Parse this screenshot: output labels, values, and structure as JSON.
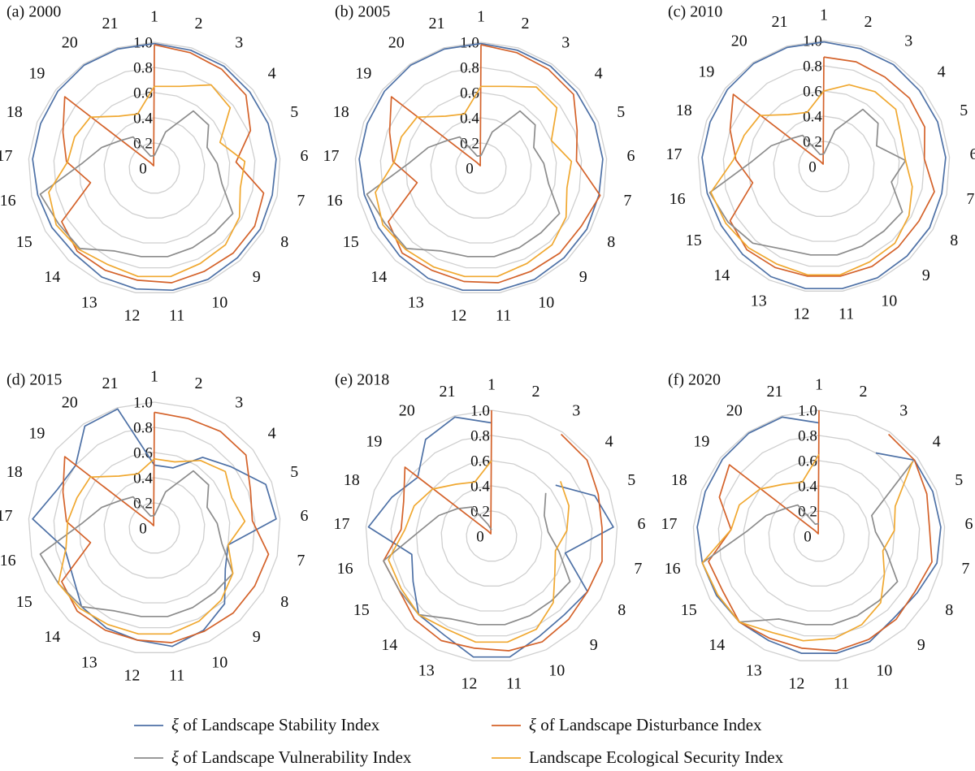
{
  "colors": {
    "stability": "#4e71a6",
    "disturbance": "#d4622a",
    "vulnerability": "#8c8c8c",
    "security": "#f0a830",
    "grid": "#cfcfcf"
  },
  "legend": [
    {
      "key": "stability",
      "prefix": "ξ",
      "text": " of Landscape Stability Index"
    },
    {
      "key": "disturbance",
      "prefix": "ξ",
      "text": " of Landscape Disturbance Index"
    },
    {
      "key": "vulnerability",
      "prefix": "ξ",
      "text": " of Landscape Vulnerability Index"
    },
    {
      "key": "security",
      "prefix": "",
      "text": "Landscape Ecological Security Index"
    }
  ],
  "chart_data": [
    {
      "type": "radar",
      "title": "(a) 2000",
      "categories": [
        "1",
        "2",
        "3",
        "4",
        "5",
        "6",
        "7",
        "8",
        "9",
        "10",
        "11",
        "12",
        "13",
        "14",
        "15",
        "16",
        "17",
        "18",
        "19",
        "20",
        "21"
      ],
      "ticks": [
        "0",
        "0.2",
        "0.4",
        "0.6",
        "0.8",
        "1.0"
      ],
      "ylim": [
        0,
        1
      ],
      "series": [
        {
          "key": "stability",
          "name": "ξ of Landscape Stability Index",
          "values": [
            0.99,
            0.98,
            0.98,
            0.97,
            0.97,
            0.97,
            0.96,
            0.97,
            0.97,
            0.98,
            0.98,
            0.97,
            0.96,
            0.93,
            0.94,
            0.95,
            0.97,
            0.97,
            0.98,
            0.99,
            0.99
          ]
        },
        {
          "key": "disturbance",
          "name": "ξ of Landscape Disturbance Index",
          "values": [
            0.98,
            0.96,
            0.95,
            0.93,
            0.82,
            0.65,
            0.89,
            0.92,
            0.92,
            0.91,
            0.92,
            0.9,
            0.9,
            0.9,
            0.85,
            0.52,
            0.7,
            0.78,
            0.91,
            0.05,
            0.02
          ]
        },
        {
          "key": "vulnerability",
          "name": "ξ of Landscape Vulnerability Index",
          "values": [
            0.1,
            0.3,
            0.55,
            0.55,
            0.45,
            0.5,
            0.55,
            0.72,
            0.7,
            0.7,
            0.71,
            0.71,
            0.73,
            0.87,
            0.88,
            0.93,
            0.57,
            0.45,
            0.35,
            0.3,
            0.1
          ]
        },
        {
          "key": "security",
          "name": "Landscape Ecological Security Index",
          "values": [
            0.65,
            0.68,
            0.8,
            0.77,
            0.56,
            0.72,
            0.7,
            0.78,
            0.83,
            0.84,
            0.87,
            0.87,
            0.85,
            0.88,
            0.9,
            0.86,
            0.69,
            0.68,
            0.65,
            0.5,
            0.45
          ]
        }
      ]
    },
    {
      "type": "radar",
      "title": "(b) 2005",
      "categories": [
        "1",
        "2",
        "3",
        "4",
        "5",
        "6",
        "7",
        "8",
        "9",
        "10",
        "11",
        "12",
        "13",
        "14",
        "15",
        "16",
        "17",
        "18",
        "19",
        "20",
        "21"
      ],
      "ticks": [
        "0",
        "0.2",
        "0.4",
        "0.6",
        "0.8",
        "1.0"
      ],
      "ylim": [
        0,
        1
      ],
      "series": [
        {
          "key": "stability",
          "name": "ξ of Landscape Stability Index",
          "values": [
            0.99,
            0.98,
            0.98,
            0.97,
            0.97,
            0.97,
            0.96,
            0.97,
            0.97,
            0.98,
            0.98,
            0.98,
            0.97,
            0.95,
            0.94,
            0.95,
            0.97,
            0.97,
            0.98,
            0.99,
            0.99
          ]
        },
        {
          "key": "disturbance",
          "name": "ξ of Landscape Disturbance Index",
          "values": [
            0.98,
            0.96,
            0.95,
            0.94,
            0.82,
            0.76,
            0.97,
            0.92,
            0.92,
            0.91,
            0.92,
            0.91,
            0.9,
            0.92,
            0.85,
            0.52,
            0.7,
            0.78,
            0.91,
            0.05,
            0.02
          ]
        },
        {
          "key": "vulnerability",
          "name": "ξ of Landscape Vulnerability Index",
          "values": [
            0.1,
            0.3,
            0.55,
            0.55,
            0.45,
            0.5,
            0.55,
            0.72,
            0.7,
            0.7,
            0.71,
            0.71,
            0.73,
            0.87,
            0.88,
            0.93,
            0.57,
            0.45,
            0.35,
            0.3,
            0.1
          ]
        },
        {
          "key": "security",
          "name": "Landscape Ecological Security Index",
          "values": [
            0.65,
            0.68,
            0.78,
            0.77,
            0.6,
            0.72,
            0.7,
            0.78,
            0.83,
            0.84,
            0.87,
            0.87,
            0.87,
            0.88,
            0.9,
            0.86,
            0.69,
            0.68,
            0.65,
            0.5,
            0.45
          ]
        }
      ]
    },
    {
      "type": "radar",
      "title": "(c) 2010",
      "categories": [
        "1",
        "2",
        "3",
        "4",
        "5",
        "6",
        "7",
        "8",
        "9",
        "10",
        "11",
        "12",
        "13",
        "14",
        "15",
        "16",
        "17",
        "18",
        "19",
        "20",
        "21"
      ],
      "ticks": [
        "0",
        "0.2",
        "0.4",
        "0.6",
        "0.8",
        "1.0"
      ],
      "ylim": [
        0,
        1
      ],
      "series": [
        {
          "key": "stability",
          "name": "ξ of Landscape Stability Index",
          "values": [
            0.99,
            0.98,
            0.98,
            0.97,
            0.97,
            0.97,
            0.96,
            0.97,
            0.97,
            0.98,
            0.98,
            0.98,
            0.97,
            0.95,
            0.94,
            0.95,
            0.97,
            0.97,
            0.98,
            0.99,
            0.99
          ]
        },
        {
          "key": "disturbance",
          "name": "ξ of Landscape Disturbance Index",
          "values": [
            0.87,
            0.87,
            0.86,
            0.87,
            0.86,
            0.8,
            0.9,
            0.87,
            0.87,
            0.88,
            0.88,
            0.88,
            0.89,
            0.9,
            0.86,
            0.58,
            0.7,
            0.8,
            0.92,
            0.05,
            0.02
          ]
        },
        {
          "key": "vulnerability",
          "name": "ξ of Landscape Vulnerability Index",
          "values": [
            0.1,
            0.3,
            0.55,
            0.55,
            0.45,
            0.65,
            0.55,
            0.72,
            0.7,
            0.7,
            0.71,
            0.71,
            0.73,
            0.83,
            0.88,
            0.93,
            0.57,
            0.45,
            0.35,
            0.3,
            0.1
          ]
        },
        {
          "key": "security",
          "name": "Landscape Ecological Security Index",
          "values": [
            0.6,
            0.68,
            0.72,
            0.73,
            0.66,
            0.65,
            0.72,
            0.78,
            0.83,
            0.84,
            0.87,
            0.87,
            0.86,
            0.88,
            0.9,
            0.92,
            0.72,
            0.68,
            0.65,
            0.5,
            0.45
          ]
        }
      ]
    },
    {
      "type": "radar",
      "title": "(d) 2015",
      "categories": [
        "1",
        "2",
        "3",
        "4",
        "5",
        "6",
        "7",
        "8",
        "9",
        "10",
        "11",
        "12",
        "13",
        "14",
        "15",
        "16",
        "17",
        "18",
        "19",
        "20",
        "21"
      ],
      "ticks": [
        "0",
        "0.2",
        "0.4",
        "0.6",
        "0.8",
        "1.0"
      ],
      "ylim": [
        0,
        1
      ],
      "series": [
        {
          "key": "stability",
          "name": "ξ of Landscape Stability Index",
          "values": [
            0.5,
            0.5,
            0.68,
            0.78,
            0.95,
            0.97,
            0.6,
            0.65,
            0.82,
            0.9,
            0.95,
            0.9,
            0.88,
            0.85,
            0.75,
            0.73,
            0.97,
            0.83,
            0.8,
            0.98,
            0.99
          ]
        },
        {
          "key": "disturbance",
          "name": "ξ of Landscape Disturbance Index",
          "values": [
            0.92,
            0.91,
            0.93,
            0.93,
            0.82,
            0.78,
            0.93,
            0.92,
            0.92,
            0.91,
            0.92,
            0.9,
            0.9,
            0.9,
            0.85,
            0.52,
            0.7,
            0.78,
            0.91,
            0.05,
            0.02
          ]
        },
        {
          "key": "vulnerability",
          "name": "ξ of Landscape Vulnerability Index",
          "values": [
            0.1,
            0.3,
            0.55,
            0.55,
            0.45,
            0.5,
            0.55,
            0.72,
            0.7,
            0.7,
            0.71,
            0.71,
            0.73,
            0.85,
            0.88,
            0.93,
            0.57,
            0.45,
            0.35,
            0.3,
            0.1
          ]
        },
        {
          "key": "security",
          "name": "Landscape Ecological Security Index",
          "values": [
            0.55,
            0.55,
            0.65,
            0.72,
            0.66,
            0.72,
            0.6,
            0.72,
            0.78,
            0.82,
            0.85,
            0.85,
            0.85,
            0.87,
            0.88,
            0.72,
            0.69,
            0.66,
            0.65,
            0.5,
            0.45
          ]
        }
      ]
    },
    {
      "type": "radar",
      "title": "(e) 2018",
      "categories": [
        "1",
        "2",
        "3",
        "4",
        "5",
        "6",
        "7",
        "8",
        "9",
        "10",
        "11",
        "12",
        "13",
        "14",
        "15",
        "16",
        "17",
        "18",
        "19",
        "20",
        "21"
      ],
      "ticks": [
        "0",
        "0.2",
        "0.4",
        "0.6",
        "0.8",
        "1.0"
      ],
      "ylim": [
        0,
        1
      ],
      "series": [
        {
          "key": "stability",
          "name": "ξ of Landscape Stability Index",
          "values": [
            0.9,
            null,
            null,
            0.65,
            0.88,
            0.97,
            0.6,
            0.88,
            0.85,
            0.88,
            0.97,
            0.97,
            0.87,
            0.85,
            0.72,
            0.65,
            0.98,
            0.85,
            0.75,
            0.93,
            0.99
          ]
        },
        {
          "key": "disturbance",
          "name": "ξ of Landscape Disturbance Index",
          "values": [
            1.0,
            null,
            0.98,
            0.97,
            0.91,
            0.88,
            0.9,
            0.88,
            0.9,
            0.93,
            0.92,
            0.9,
            0.92,
            0.9,
            0.85,
            0.88,
            0.72,
            0.75,
            0.88,
            0.05,
            0.02
          ]
        },
        {
          "key": "vulnerability",
          "name": "ξ of Landscape Vulnerability Index",
          "values": [
            0.05,
            null,
            null,
            0.55,
            0.45,
            0.45,
            0.55,
            0.72,
            0.7,
            0.7,
            0.71,
            0.71,
            0.73,
            0.85,
            0.85,
            0.88,
            0.57,
            0.45,
            0.35,
            0.28,
            0.1
          ]
        },
        {
          "key": "security",
          "name": "Landscape Ecological Security Index",
          "values": [
            0.6,
            null,
            null,
            0.7,
            0.66,
            0.6,
            0.52,
            0.58,
            0.72,
            0.82,
            0.85,
            0.85,
            0.82,
            0.85,
            0.83,
            0.84,
            0.69,
            0.66,
            0.6,
            0.5,
            0.45
          ]
        }
      ]
    },
    {
      "type": "radar",
      "title": "(f) 2020",
      "categories": [
        "1",
        "2",
        "3",
        "4",
        "5",
        "6",
        "7",
        "8",
        "9",
        "10",
        "11",
        "12",
        "13",
        "14",
        "15",
        "16",
        "17",
        "18",
        "19",
        "20",
        "21"
      ],
      "ticks": [
        "0",
        "0.2",
        "0.4",
        "0.6",
        "0.8",
        "1.0"
      ],
      "ylim": [
        0,
        1
      ],
      "series": [
        {
          "key": "stability",
          "name": "ξ of Landscape Stability Index",
          "values": [
            0.9,
            null,
            0.8,
            0.97,
            0.97,
            0.97,
            0.96,
            0.9,
            0.88,
            0.93,
            0.94,
            0.94,
            0.92,
            0.93,
            0.94,
            0.95,
            0.97,
            0.97,
            0.98,
            0.99,
            0.99
          ]
        },
        {
          "key": "disturbance",
          "name": "ξ of Landscape Disturbance Index",
          "values": [
            1.0,
            null,
            0.98,
            0.97,
            0.92,
            0.88,
            0.92,
            0.88,
            0.9,
            0.91,
            0.92,
            0.9,
            0.9,
            0.93,
            0.88,
            0.9,
            0.7,
            0.85,
            0.91,
            0.05,
            0.02
          ]
        },
        {
          "key": "vulnerability",
          "name": "ξ of Landscape Vulnerability Index",
          "values": [
            0.1,
            null,
            null,
            0.96,
            0.45,
            0.45,
            0.55,
            0.72,
            0.7,
            0.7,
            0.71,
            0.71,
            0.73,
            0.93,
            0.93,
            0.95,
            0.57,
            0.45,
            0.35,
            0.3,
            0.1
          ]
        },
        {
          "key": "security",
          "name": "Landscape Ecological Security Index",
          "values": [
            0.65,
            null,
            null,
            0.95,
            0.65,
            0.6,
            0.52,
            0.6,
            0.72,
            0.78,
            0.82,
            0.84,
            0.85,
            0.93,
            0.93,
            0.95,
            0.7,
            0.68,
            0.6,
            0.5,
            0.45
          ]
        }
      ]
    }
  ]
}
